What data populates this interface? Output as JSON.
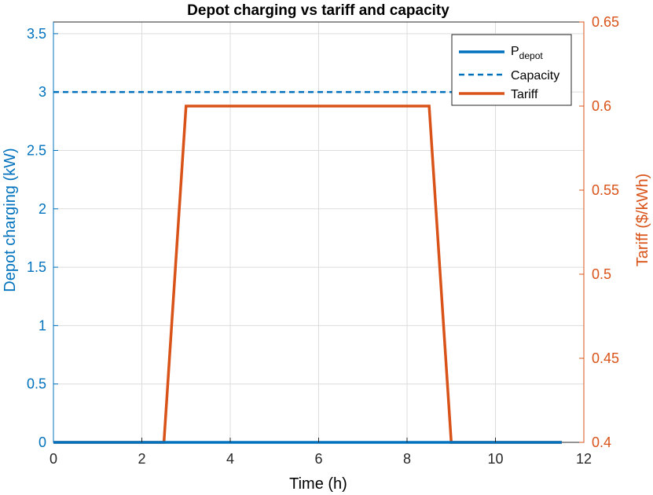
{
  "chart_data": {
    "type": "line",
    "title": "Depot charging vs tariff and capacity",
    "xlabel": "Time (h)",
    "xlim": [
      0,
      12
    ],
    "xticks": [
      "0",
      "2",
      "4",
      "6",
      "8",
      "10",
      "12"
    ],
    "grid": true,
    "legend_position": "top-right",
    "y_left": {
      "label": "Depot charging (kW)",
      "lim": [
        0,
        3.6
      ],
      "ticks": [
        "0",
        "0.5",
        "1",
        "1.5",
        "2",
        "2.5",
        "3",
        "3.5"
      ],
      "color": "#0072BD"
    },
    "y_right": {
      "label": "Tariff ($/kWh)",
      "lim": [
        0.4,
        0.65
      ],
      "ticks": [
        "0.4",
        "0.45",
        "0.5",
        "0.55",
        "0.6",
        "0.65"
      ],
      "color": "#D95319"
    },
    "series": [
      {
        "legend_main": "P",
        "legend_sub": "depot",
        "axis": "left",
        "style": "solid",
        "color": "#0072BD",
        "x": [
          0,
          11.5
        ],
        "y": [
          0,
          0
        ]
      },
      {
        "name": "Capacity",
        "axis": "left",
        "style": "dashed",
        "color": "#0072BD",
        "x": [
          0,
          11.5
        ],
        "y": [
          3,
          3
        ]
      },
      {
        "name": "Tariff",
        "axis": "right",
        "style": "solid",
        "color": "#D95319",
        "x": [
          0,
          2.5,
          3,
          8.5,
          9,
          11.5
        ],
        "y": [
          0.4,
          0.4,
          0.6,
          0.6,
          0.4,
          0.4
        ]
      }
    ]
  }
}
